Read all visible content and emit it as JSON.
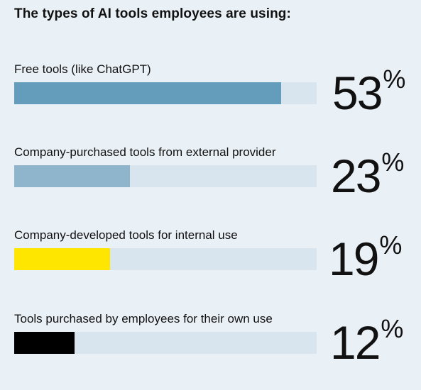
{
  "chart_data": {
    "type": "bar",
    "orientation": "horizontal",
    "title": "The types of AI tools employees are using:",
    "categories": [
      "Free tools (like ChatGPT)",
      "Company-purchased tools from external provider",
      "Company-developed tools for internal use",
      "Tools purchased by employees for their own use"
    ],
    "values": [
      53,
      23,
      19,
      12
    ],
    "value_labels": [
      "53",
      "23",
      "19",
      "12"
    ],
    "unit": "%",
    "xlim": [
      0,
      60
    ],
    "colors": [
      "#649dbb",
      "#8fb5cc",
      "#ffe600",
      "#000000"
    ],
    "track_color": "#d8e5ee",
    "grid": false,
    "legend": "none"
  }
}
